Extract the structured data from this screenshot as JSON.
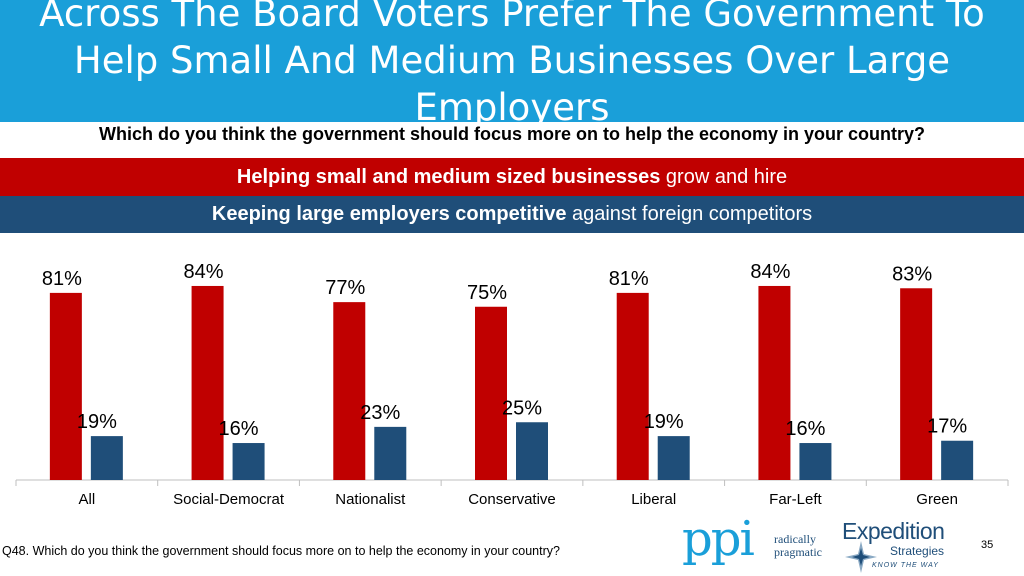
{
  "title": "Across The Board Voters Prefer The Government To Help Small And Medium Businesses Over Large Employers",
  "question": "Which do you think the government should focus more on to help the economy in your country?",
  "legend": {
    "red_bold": "Helping small and medium sized businesses",
    "red_rest": " grow and hire",
    "blue_bold": "Keeping large employers competitive",
    "blue_rest": " against foreign competitors"
  },
  "chart_data": {
    "type": "bar",
    "categories": [
      "All",
      "Social-Democrat",
      "Nationalist",
      "Conservative",
      "Liberal",
      "Far-Left",
      "Green"
    ],
    "series": [
      {
        "values": [
          81,
          84,
          77,
          75,
          81,
          84,
          83
        ],
        "color": "#c00000"
      },
      {
        "values": [
          19,
          16,
          23,
          25,
          19,
          16,
          17
        ],
        "color": "#1f4e79"
      }
    ],
    "unit": "%",
    "ylim": [
      0,
      100
    ],
    "grid": false
  },
  "footnote": "Q48. Which do you think the government should focus more on to help the economy in your country?",
  "logos": {
    "ppi_letters": "ppi",
    "ppi_tagline": "radically pragmatic",
    "expedition_name": "Expedition",
    "expedition_sub": "Strategies",
    "expedition_motto": "KNOW THE WAY"
  },
  "slide_number": "35"
}
